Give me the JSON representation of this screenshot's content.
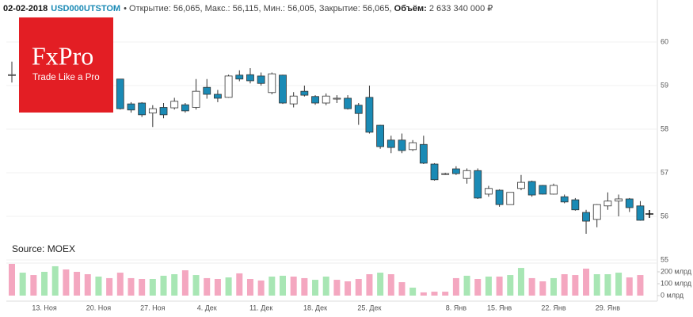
{
  "header": {
    "date": "02-02-2018",
    "ticker": "USD000UTSTOM",
    "info": "• Открытие: 56,065, Макс.: 56,115, Мин.: 56,005, Закрытие: 56,065,",
    "volume_label": "Объём:",
    "volume_value": "2 633 340 000 ₽"
  },
  "logo": {
    "name": "FxPro",
    "slogan": "Trade Like a Pro"
  },
  "source": "Source: MOEX",
  "chart_data": [
    {
      "type": "candlestick",
      "categories": [
        null,
        null,
        null,
        "13. Ноя",
        null,
        null,
        null,
        null,
        "20. Ноя",
        null,
        null,
        null,
        null,
        "27. Ноя",
        null,
        null,
        null,
        null,
        "4. Дек",
        null,
        null,
        null,
        null,
        "11. Дек",
        null,
        null,
        null,
        null,
        "18. Дек",
        null,
        null,
        null,
        null,
        "25. Дек",
        null,
        null,
        null,
        null,
        null,
        null,
        null,
        "8. Янв",
        null,
        null,
        null,
        "15. Янв",
        null,
        null,
        null,
        null,
        "22. Янв",
        null,
        null,
        null,
        null,
        "29. Янв",
        null,
        null,
        null
      ],
      "open": [
        59.24,
        null,
        null,
        null,
        null,
        null,
        null,
        null,
        null,
        null,
        59.15,
        58.58,
        58.6,
        58.37,
        58.5,
        58.49,
        58.56,
        58.5,
        58.96,
        58.8,
        58.73,
        59.24,
        59.25,
        59.22,
        58.84,
        59.24,
        58.58,
        58.87,
        58.75,
        58.6,
        58.69,
        58.71,
        58.55,
        58.73,
        58.09,
        57.75,
        57.75,
        57.53,
        57.65,
        57.2,
        56.96,
        57.09,
        56.87,
        57.05,
        56.51,
        56.6,
        56.27,
        56.64,
        56.8,
        56.71,
        56.51,
        56.45,
        56.38,
        56.09,
        55.93,
        56.24,
        56.35,
        56.4,
        56.24
      ],
      "high": [
        59.55,
        null,
        null,
        null,
        null,
        null,
        null,
        null,
        null,
        null,
        59.15,
        58.62,
        58.62,
        58.55,
        58.6,
        58.72,
        58.6,
        59.15,
        59.15,
        58.9,
        59.25,
        59.35,
        59.4,
        59.3,
        59.3,
        59.25,
        58.85,
        59.0,
        58.78,
        58.82,
        58.78,
        58.78,
        58.6,
        59.0,
        58.1,
        57.85,
        57.9,
        57.75,
        57.85,
        57.22,
        57.0,
        57.15,
        57.1,
        57.1,
        56.7,
        56.62,
        56.55,
        56.95,
        56.82,
        56.72,
        56.75,
        56.5,
        56.42,
        56.15,
        56.28,
        56.55,
        56.5,
        56.42,
        56.35
      ],
      "low": [
        59.07,
        null,
        null,
        null,
        null,
        null,
        null,
        null,
        null,
        null,
        58.45,
        58.38,
        58.28,
        58.05,
        58.25,
        58.45,
        58.38,
        58.45,
        58.7,
        58.62,
        58.72,
        59.1,
        59.05,
        59.0,
        58.8,
        58.58,
        58.5,
        58.75,
        58.56,
        58.55,
        58.6,
        58.45,
        58.1,
        57.9,
        57.55,
        57.45,
        57.45,
        57.5,
        57.2,
        56.82,
        56.95,
        56.95,
        56.75,
        56.4,
        56.45,
        56.22,
        56.27,
        56.6,
        56.45,
        56.5,
        56.5,
        56.3,
        56.13,
        55.6,
        55.75,
        56.15,
        56.0,
        56.1,
        55.9
      ],
      "close": [
        59.25,
        null,
        null,
        null,
        null,
        null,
        null,
        null,
        null,
        null,
        58.47,
        58.44,
        58.33,
        58.47,
        58.33,
        58.64,
        58.42,
        58.87,
        58.8,
        58.71,
        59.22,
        59.15,
        59.11,
        59.05,
        59.27,
        58.6,
        58.76,
        58.78,
        58.6,
        58.76,
        58.71,
        58.47,
        58.36,
        57.93,
        57.6,
        57.58,
        57.51,
        57.69,
        57.22,
        56.84,
        56.98,
        56.98,
        57.05,
        56.42,
        56.64,
        56.27,
        56.55,
        56.78,
        56.49,
        56.51,
        56.71,
        56.33,
        56.15,
        55.89,
        56.27,
        56.35,
        56.4,
        56.2,
        55.91
      ],
      "up_color": "#ffffff",
      "down_color": "#1a8ab5",
      "ylim": [
        55,
        61
      ],
      "yticks": [
        55,
        56,
        57,
        58,
        59,
        60
      ],
      "grid": true
    },
    {
      "type": "bar",
      "values": [
        267,
        193,
        173,
        200,
        247,
        220,
        200,
        180,
        160,
        147,
        193,
        147,
        140,
        140,
        167,
        180,
        213,
        173,
        147,
        140,
        153,
        187,
        140,
        127,
        160,
        167,
        160,
        147,
        133,
        160,
        133,
        120,
        140,
        180,
        193,
        180,
        113,
        67,
        27,
        33,
        33,
        147,
        167,
        140,
        160,
        160,
        173,
        233,
        147,
        120,
        147,
        180,
        173,
        227,
        180,
        180,
        193,
        153,
        173
      ],
      "colors": [
        "#f4a7c0",
        "#a8e6b4",
        "#f4a7c0",
        "#a8e6b4",
        "#a8e6b4",
        "#f4a7c0",
        "#f4a7c0",
        "#f4a7c0",
        "#a8e6b4",
        "#f4a7c0",
        "#f4a7c0",
        "#f4a7c0",
        "#f4a7c0",
        "#a8e6b4",
        "#a8e6b4",
        "#a8e6b4",
        "#f4a7c0",
        "#a8e6b4",
        "#f4a7c0",
        "#f4a7c0",
        "#a8e6b4",
        "#f4a7c0",
        "#f4a7c0",
        "#f4a7c0",
        "#a8e6b4",
        "#a8e6b4",
        "#f4a7c0",
        "#f4a7c0",
        "#a8e6b4",
        "#a8e6b4",
        "#f4a7c0",
        "#f4a7c0",
        "#f4a7c0",
        "#f4a7c0",
        "#a8e6b4",
        "#f4a7c0",
        "#f4a7c0",
        "#a8e6b4",
        "#f4a7c0",
        "#f4a7c0",
        "#f4a7c0",
        "#f4a7c0",
        "#a8e6b4",
        "#f4a7c0",
        "#a8e6b4",
        "#f4a7c0",
        "#a8e6b4",
        "#a8e6b4",
        "#f4a7c0",
        "#f4a7c0",
        "#a8e6b4",
        "#f4a7c0",
        "#f4a7c0",
        "#f4a7c0",
        "#a8e6b4",
        "#a8e6b4",
        "#a8e6b4",
        "#f4a7c0",
        "#f4a7c0"
      ],
      "ylim": [
        0,
        300
      ],
      "yticks": [
        {
          "value": 0,
          "label": "0 млрд"
        },
        {
          "value": 100,
          "label": "100 млрд"
        },
        {
          "value": 200,
          "label": "200 млрд"
        }
      ]
    }
  ]
}
